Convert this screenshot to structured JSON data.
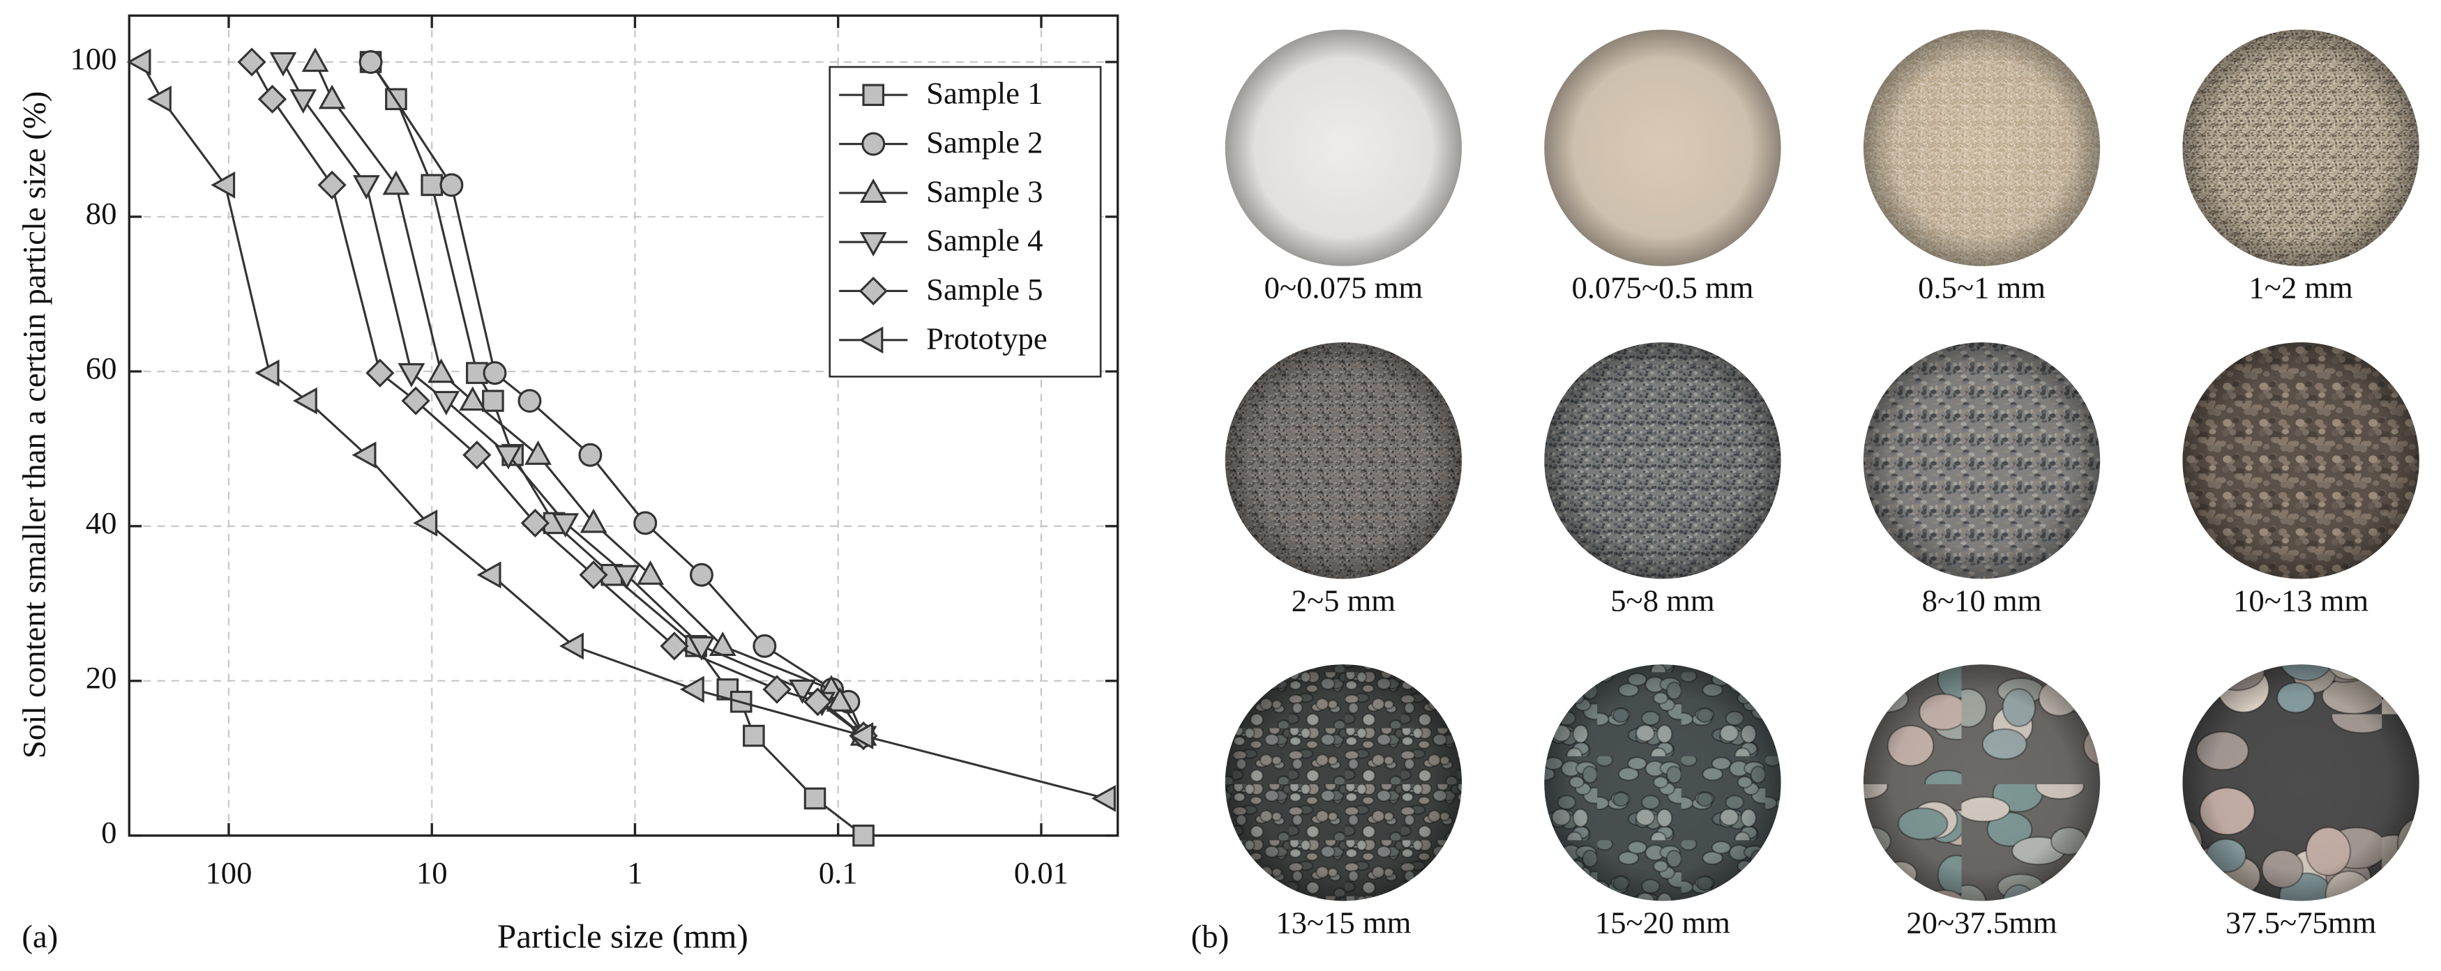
{
  "chart_data": {
    "type": "line",
    "xlabel": "Particle size (mm)",
    "ylabel": "Soil content smaller than a certain particle size (%)",
    "xscale": "log",
    "xlim": [
      309,
      0.0042
    ],
    "xticks": [
      100,
      10,
      1,
      0.1,
      0.01
    ],
    "ylim": [
      0,
      106
    ],
    "yticks": [
      0,
      20,
      40,
      60,
      80,
      100
    ],
    "grid": true,
    "legend": "upper right",
    "series": [
      {
        "name": "Sample 1",
        "color": "#333333",
        "fill": "#c0c0c0",
        "marker": "square",
        "x": [
          20,
          15,
          10,
          6,
          5,
          4,
          2.5,
          1.3,
          0.5,
          0.35,
          0.3,
          0.26,
          0.13,
          0.075
        ],
        "values": [
          100,
          95.2,
          84.1,
          59.8,
          56.2,
          49.2,
          40.4,
          33.7,
          24.5,
          18.9,
          17.3,
          12.9,
          4.8,
          0
        ]
      },
      {
        "name": "Sample 2",
        "color": "#333333",
        "fill": "#c0c0c0",
        "marker": "circle",
        "x": [
          20,
          8,
          4.9,
          3.3,
          1.66,
          0.89,
          0.47,
          0.23,
          0.107,
          0.089,
          0.075
        ],
        "values": [
          100,
          84.1,
          59.8,
          56.2,
          49.2,
          40.4,
          33.7,
          24.5,
          18.9,
          17.3,
          12.9
        ]
      },
      {
        "name": "Sample 3",
        "color": "#333333",
        "fill": "#c0c0c0",
        "marker": "triangle-up",
        "x": [
          37.5,
          31,
          15,
          9,
          6.3,
          3,
          1.6,
          0.84,
          0.37,
          0.108,
          0.098,
          0.075
        ],
        "values": [
          100,
          95.2,
          84.1,
          59.8,
          56.2,
          49.2,
          40.4,
          33.7,
          24.5,
          18.9,
          17.3,
          12.9
        ]
      },
      {
        "name": "Sample 4",
        "color": "#333333",
        "fill": "#c0c0c0",
        "marker": "triangle-down",
        "x": [
          54,
          43,
          21,
          12.6,
          8.5,
          4.2,
          2.2,
          1.1,
          0.47,
          0.15,
          0.12,
          0.075
        ],
        "values": [
          100,
          95.2,
          84.1,
          59.8,
          56.2,
          49.2,
          40.4,
          33.7,
          24.5,
          18.9,
          17.3,
          12.9
        ]
      },
      {
        "name": "Sample 5",
        "color": "#333333",
        "fill": "#c0c0c0",
        "marker": "diamond",
        "x": [
          77,
          61,
          31,
          18,
          12,
          6,
          3.1,
          1.6,
          0.64,
          0.2,
          0.126,
          0.075
        ],
        "values": [
          100,
          95.2,
          84.1,
          59.8,
          56.2,
          49.2,
          40.4,
          33.7,
          24.5,
          18.9,
          17.3,
          12.9
        ]
      },
      {
        "name": "Prototype",
        "color": "#333333",
        "fill": "#c0c0c0",
        "marker": "triangle-left",
        "x": [
          270,
          214,
          104,
          63,
          41,
          21,
          10.5,
          5.1,
          2,
          0.51,
          0.075,
          0.0048
        ],
        "values": [
          100,
          95.2,
          84.1,
          59.8,
          56.2,
          49.2,
          40.4,
          33.7,
          24.5,
          18.9,
          12.9,
          4.8
        ]
      }
    ]
  },
  "panels": {
    "a": "(a)",
    "b": "(b)"
  },
  "photos": [
    "0~0.075 mm",
    "0.075~0.5 mm",
    "0.5~1 mm",
    "1~2 mm",
    "2~5 mm",
    "5~8 mm",
    "8~10 mm",
    "10~13 mm",
    "13~15 mm",
    "15~20 mm",
    "20~37.5mm",
    "37.5~75mm"
  ]
}
